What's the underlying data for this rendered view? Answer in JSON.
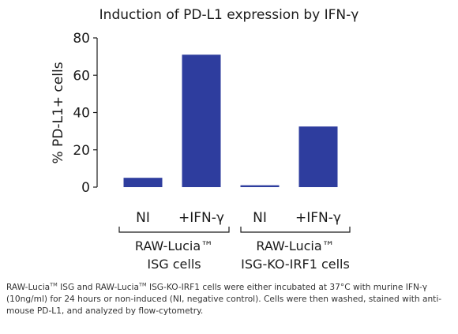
{
  "chart_data": {
    "type": "bar",
    "title": "Induction of PD-L1 expression by IFN-γ",
    "ylabel": "% PD-L1+ cells",
    "xlabel": "",
    "ylim": [
      0,
      80
    ],
    "yticks": [
      0,
      20,
      40,
      60,
      80
    ],
    "grid": false,
    "bar_color": "#2e3d9e",
    "categories": [
      "NI",
      "+IFN-γ",
      "NI",
      "+IFN-γ"
    ],
    "values": [
      5,
      71,
      1,
      32.5
    ],
    "groups": [
      {
        "line1": "RAW-Lucia™",
        "line2": "ISG cells",
        "members": [
          0,
          1
        ]
      },
      {
        "line1": "RAW-Lucia™",
        "line2": "ISG-KO-IRF1 cells",
        "members": [
          2,
          3
        ]
      }
    ]
  },
  "caption": {
    "seg1": "RAW-Lucia",
    "tm": "TM",
    "seg2": " ISG and RAW-Lucia",
    "seg3": " ISG-KO-IRF1 cells were either incubated at 37°C with murine IFN-γ (10ng/ml) for 24 hours or non-induced (NI, negative control). Cells were then washed, stained with anti-mouse PD-L1, and analyzed by flow-cytometry."
  }
}
